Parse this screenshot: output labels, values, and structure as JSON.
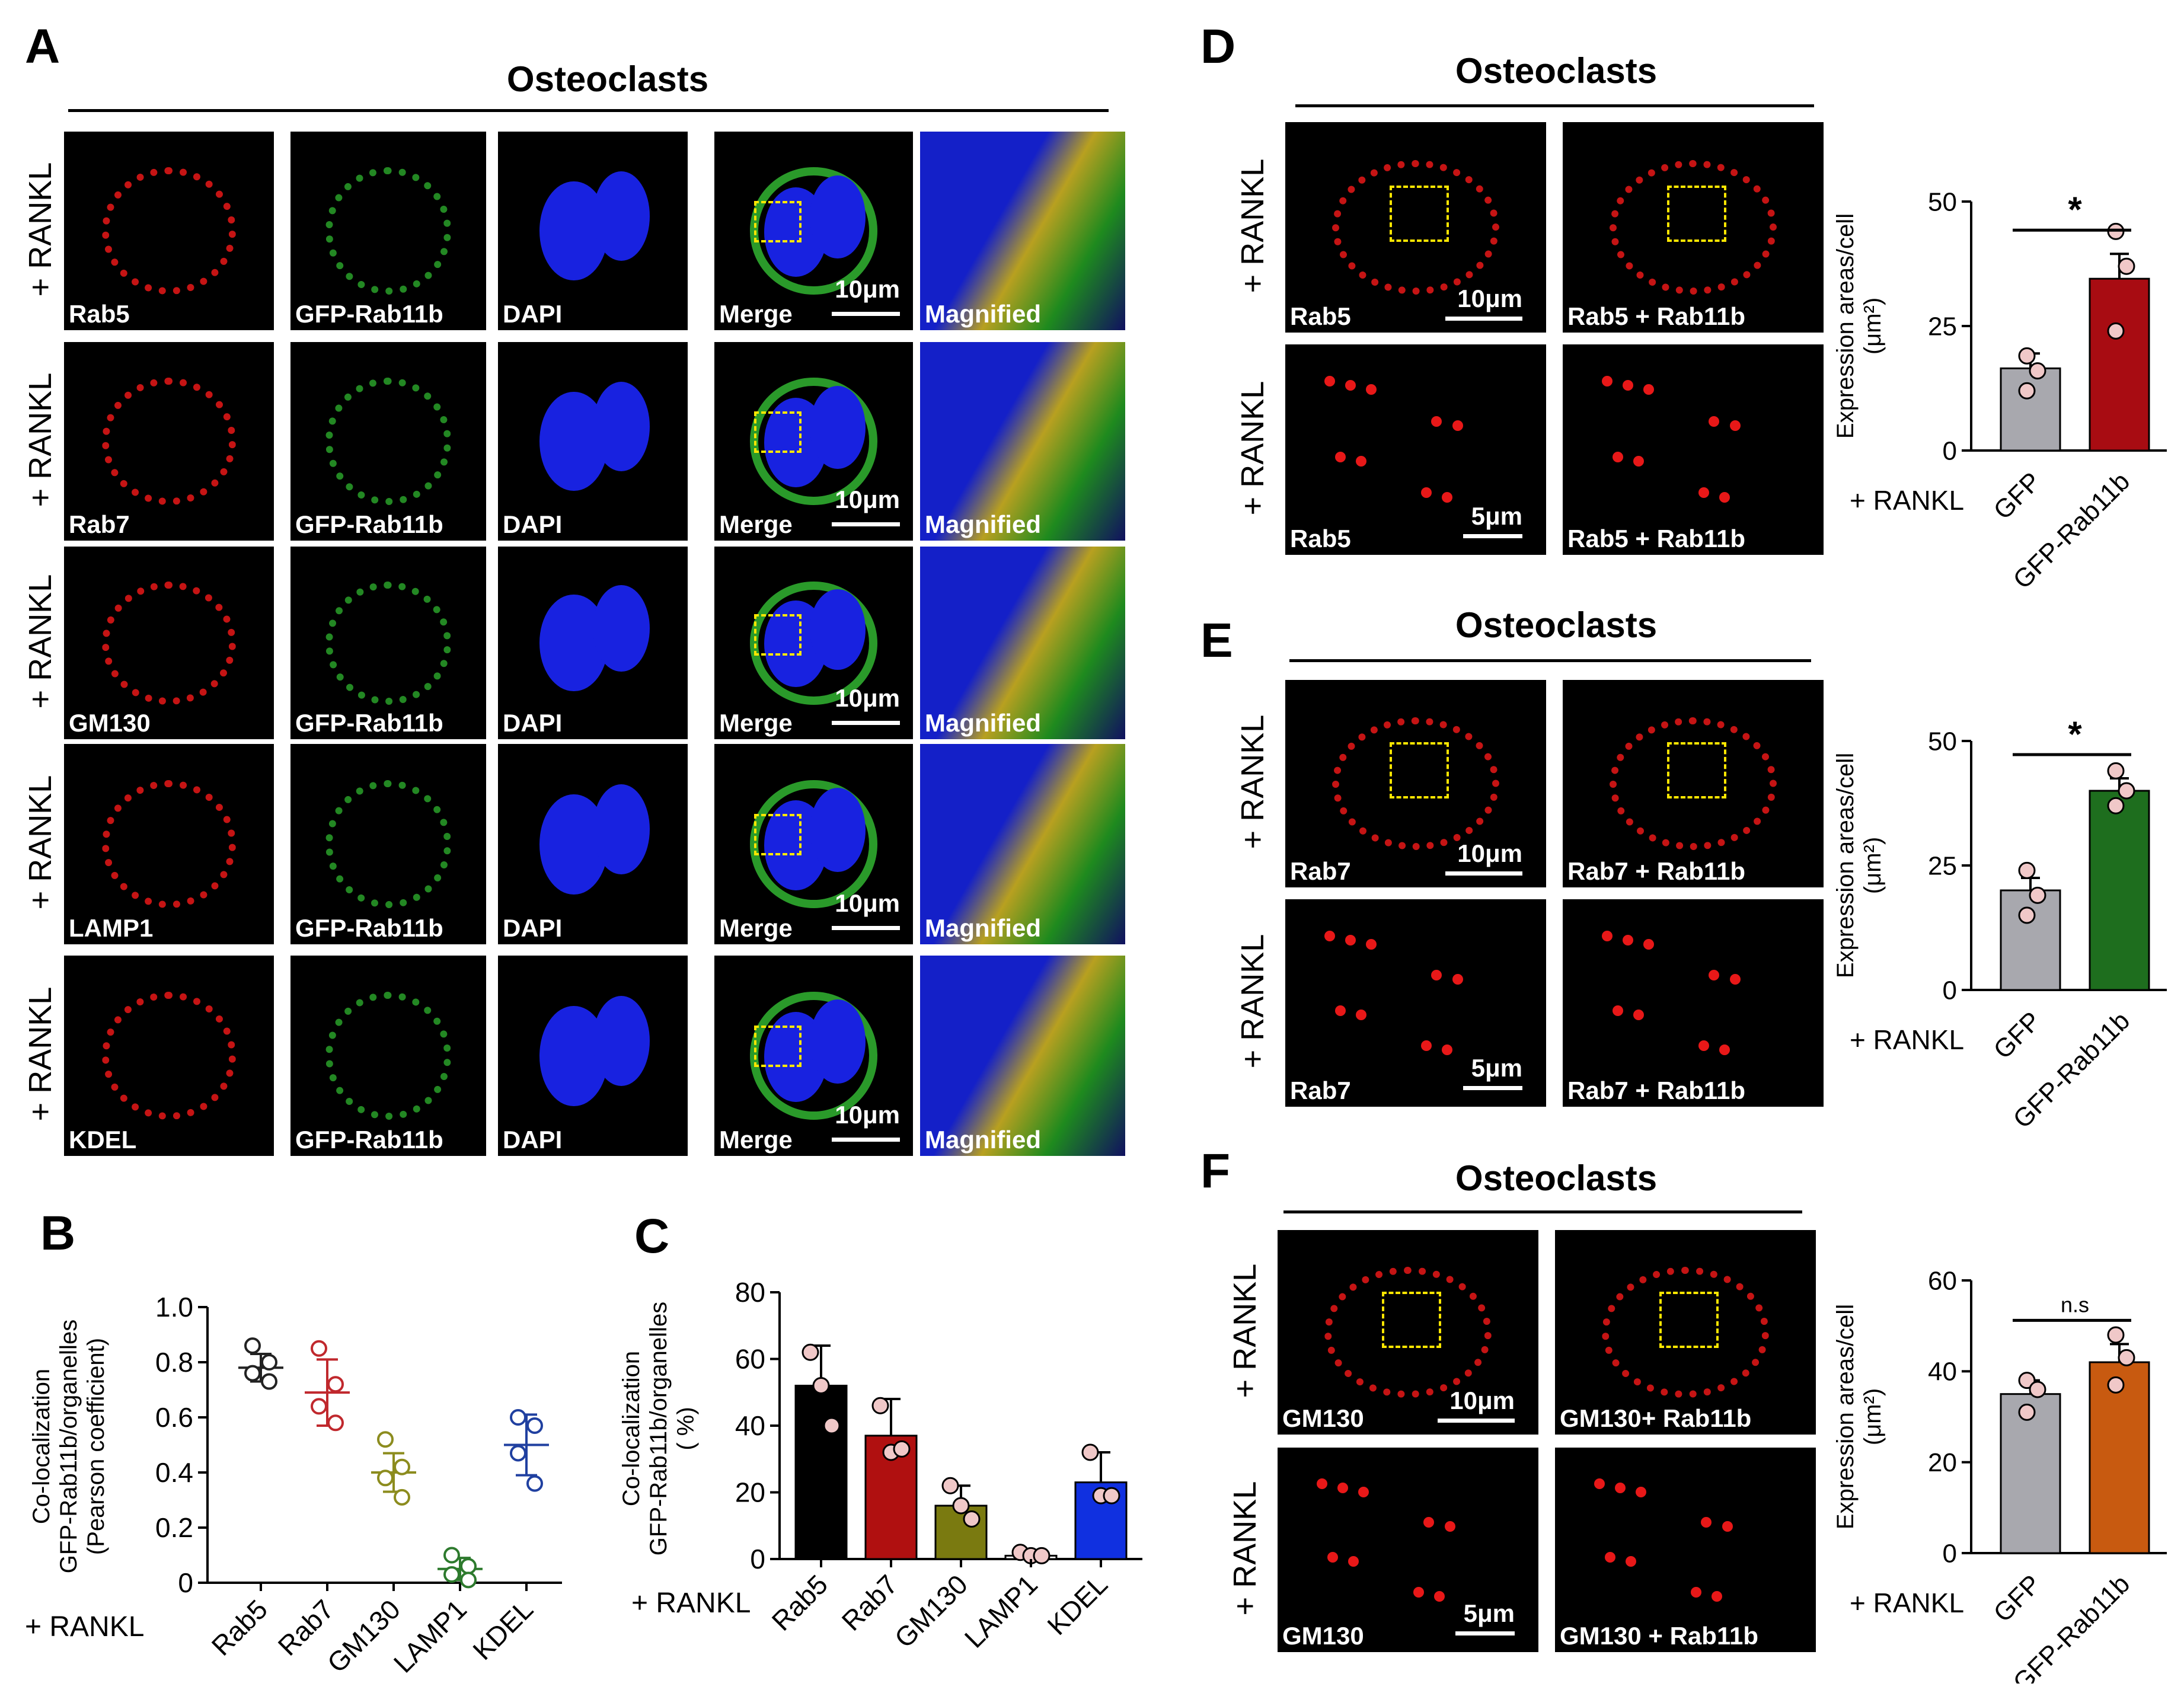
{
  "panels": {
    "A": {
      "letter": "A",
      "title": "Osteoclasts",
      "row_label": "+ RANKL",
      "rows": [
        {
          "marker": "Rab5",
          "gfp": "GFP-Rab11b",
          "dapi": "DAPI",
          "merge": "Merge",
          "mag": "Magnified",
          "scale": "10μm"
        },
        {
          "marker": "Rab7",
          "gfp": "GFP-Rab11b",
          "dapi": "DAPI",
          "merge": "Merge",
          "mag": "Magnified",
          "scale": "10μm"
        },
        {
          "marker": "GM130",
          "gfp": "GFP-Rab11b",
          "dapi": "DAPI",
          "merge": "Merge",
          "mag": "Magnified",
          "scale": "10μm"
        },
        {
          "marker": "LAMP1",
          "gfp": "GFP-Rab11b",
          "dapi": "DAPI",
          "merge": "Merge",
          "mag": "Magnified",
          "scale": "10μm"
        },
        {
          "marker": "KDEL",
          "gfp": "GFP-Rab11b",
          "dapi": "DAPI",
          "merge": "Merge",
          "mag": "Magnified",
          "scale": "10μm"
        }
      ]
    },
    "B": {
      "letter": "B",
      "rankl": "+ RANKL"
    },
    "C": {
      "letter": "C",
      "rankl": "+ RANKL"
    },
    "D": {
      "letter": "D",
      "title": "Osteoclasts",
      "row_label": "+ RANKL",
      "tiles": [
        "Rab5",
        "Rab5 + Rab11b",
        "Rab5",
        "Rab5 + Rab11b"
      ],
      "scale_top": "10μm",
      "scale_bottom": "5μm",
      "rankl": "+ RANKL"
    },
    "E": {
      "letter": "E",
      "title": "Osteoclasts",
      "row_label": "+ RANKL",
      "tiles": [
        "Rab7",
        "Rab7 + Rab11b",
        "Rab7",
        "Rab7 + Rab11b"
      ],
      "scale_top": "10μm",
      "scale_bottom": "5μm",
      "rankl": "+ RANKL"
    },
    "F": {
      "letter": "F",
      "title": "Osteoclasts",
      "row_label": "+ RANKL",
      "tiles": [
        "GM130",
        "GM130+ Rab11b",
        "GM130",
        "GM130 + Rab11b"
      ],
      "scale_top": "10μm",
      "scale_bottom": "5μm",
      "rankl": "+ RANKL"
    }
  },
  "chart_data": [
    {
      "id": "B",
      "type": "scatter",
      "ylabel": "Co-localization GFP-Rab11b/organelles (Pearson coefficient)",
      "ylabel_lines": [
        "Co-localization",
        "GFP-Rab11b/organelles",
        "(Pearson coefficient)"
      ],
      "categories": [
        "Rab5",
        "Rab7",
        "GM130",
        "LAMP1",
        "KDEL"
      ],
      "ylim": [
        0,
        1.0
      ],
      "yticks": [
        "0",
        "0.2",
        "0.4",
        "0.6",
        "0.8",
        "1.0"
      ],
      "colors": [
        "#222222",
        "#c0282d",
        "#8c8c1e",
        "#2d7a2d",
        "#2040a0"
      ],
      "means": [
        0.78,
        0.69,
        0.4,
        0.05,
        0.5
      ],
      "sd": [
        0.05,
        0.12,
        0.07,
        0.04,
        0.11
      ],
      "points": [
        [
          0.86,
          0.8,
          0.76,
          0.73
        ],
        [
          0.85,
          0.72,
          0.64,
          0.58
        ],
        [
          0.52,
          0.42,
          0.38,
          0.31
        ],
        [
          0.1,
          0.06,
          0.03,
          0.01
        ],
        [
          0.6,
          0.57,
          0.47,
          0.36
        ]
      ]
    },
    {
      "id": "C",
      "type": "bar",
      "ylabel": "Co-localization GFP-Rab11b/organelles ( %)",
      "ylabel_lines": [
        "Co-localization",
        "GFP-Rab11b/organelles",
        "( %)"
      ],
      "categories": [
        "Rab5",
        "Rab7",
        "GM130",
        "LAMP1",
        "KDEL"
      ],
      "ylim": [
        0,
        80
      ],
      "yticks": [
        "0",
        "20",
        "40",
        "60",
        "80"
      ],
      "colors": [
        "#000000",
        "#b01010",
        "#7a7a10",
        "#ffffff",
        "#1030e0"
      ],
      "values": [
        52,
        37,
        16,
        1,
        23
      ],
      "sd": [
        12,
        11,
        6,
        1,
        9
      ],
      "points": [
        [
          62,
          52,
          40
        ],
        [
          46,
          32,
          33
        ],
        [
          22,
          16,
          12
        ],
        [
          2,
          1,
          1
        ],
        [
          32,
          19,
          19
        ]
      ]
    },
    {
      "id": "D",
      "type": "bar",
      "ylabel_lines": [
        "Expression areas/cell",
        "(μm²)"
      ],
      "categories": [
        "GFP",
        "GFP-Rab11b"
      ],
      "colors": [
        "#a8a8ae",
        "#a80c12"
      ],
      "ylim": [
        0,
        50
      ],
      "yticks": [
        "0",
        "25",
        "50"
      ],
      "values": [
        16.5,
        34.5
      ],
      "sd": [
        3,
        5
      ],
      "points": [
        [
          19,
          16,
          12
        ],
        [
          44,
          37,
          24
        ]
      ],
      "significance": "*"
    },
    {
      "id": "E",
      "type": "bar",
      "ylabel_lines": [
        "Expression areas/cell",
        "(μm²)"
      ],
      "categories": [
        "GFP",
        "GFP-Rab11b"
      ],
      "colors": [
        "#a8a8ae",
        "#1e6e1e"
      ],
      "ylim": [
        0,
        50
      ],
      "yticks": [
        "0",
        "25",
        "50"
      ],
      "values": [
        20,
        40
      ],
      "sd": [
        2.5,
        2.5
      ],
      "points": [
        [
          24,
          19,
          15
        ],
        [
          44,
          40,
          37
        ]
      ],
      "significance": "*"
    },
    {
      "id": "F",
      "type": "bar",
      "ylabel_lines": [
        "Expression areas/cell",
        "(μm²)"
      ],
      "categories": [
        "GFP",
        "GFP-Rab11b"
      ],
      "colors": [
        "#a8a8ae",
        "#c85a10"
      ],
      "ylim": [
        0,
        60
      ],
      "yticks": [
        "0",
        "20",
        "40",
        "60"
      ],
      "values": [
        35,
        42
      ],
      "sd": [
        3,
        4
      ],
      "points": [
        [
          38,
          36,
          31
        ],
        [
          48,
          43,
          37
        ]
      ],
      "significance": "n.s"
    }
  ]
}
